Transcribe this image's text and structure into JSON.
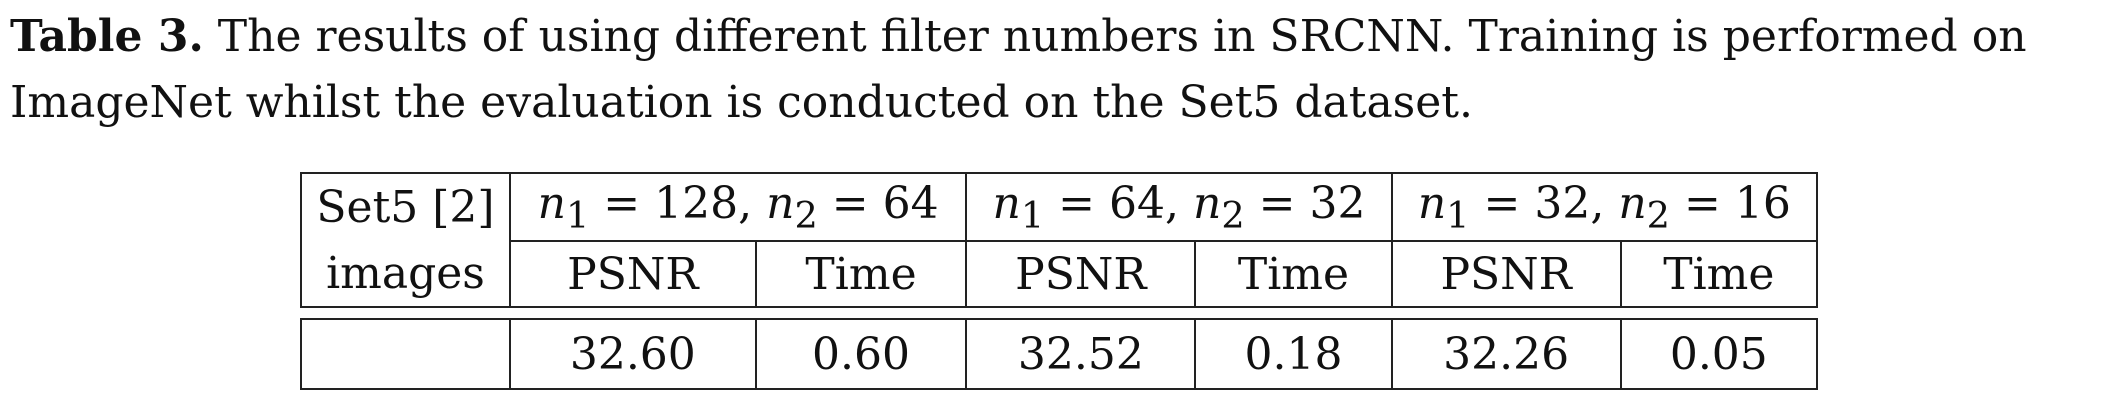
{
  "caption": {
    "label": "Table 3.",
    "text": "The results of using different filter numbers in SRCNN. Training is performed on ImageNet whilst the evaluation is conducted on the Set5 dataset."
  },
  "table": {
    "row_header_line1": "Set5 [2]",
    "row_header_line2": "images",
    "groups": [
      {
        "label": "n1 = 128, n2 = 64",
        "n1": "128",
        "n2": "64"
      },
      {
        "label": "n1 = 64, n2 = 32",
        "n1": "64",
        "n2": "32"
      },
      {
        "label": "n1 = 32, n2 = 16",
        "n1": "32",
        "n2": "16"
      }
    ],
    "subheaders": [
      "PSNR",
      "Time",
      "PSNR",
      "Time",
      "PSNR",
      "Time"
    ],
    "rows": [
      {
        "label": "",
        "values": [
          "32.60",
          "0.60",
          "32.52",
          "0.18",
          "32.26",
          "0.05"
        ]
      }
    ]
  }
}
